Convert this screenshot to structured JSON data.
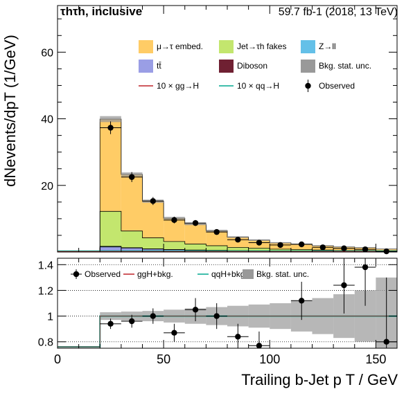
{
  "header": {
    "channel": "τhτh, inclusive",
    "lumi": "59.7 fb-1 (2018, 13 TeV)"
  },
  "axes": {
    "ylabel_main": "dNevents/dpT (1/GeV)",
    "xlabel": "Trailing b-Jet p T / GeV"
  },
  "legend_main": [
    {
      "label": "μ→τ embed.",
      "kind": "box",
      "color": "#ffcc66"
    },
    {
      "label": "Jet→τh fakes",
      "kind": "box",
      "color": "#c3e66e"
    },
    {
      "label": "Z→ll",
      "kind": "box",
      "color": "#64c0e8"
    },
    {
      "label": "tt̄",
      "kind": "box",
      "color": "#9a9ee5"
    },
    {
      "label": "Diboson",
      "kind": "box",
      "color": "#6f2032"
    },
    {
      "label": "Bkg. stat. unc.",
      "kind": "box",
      "color": "#999999"
    },
    {
      "label": "10 × gg→H",
      "kind": "line",
      "color": "#bf2229"
    },
    {
      "label": "10 × qq→H",
      "kind": "line",
      "color": "#00a88f"
    },
    {
      "label": "Observed",
      "kind": "marker",
      "color": "#000000"
    }
  ],
  "legend_ratio": [
    {
      "label": "Observed",
      "kind": "marker",
      "color": "#000000"
    },
    {
      "label": "ggH+bkg.",
      "kind": "line",
      "color": "#bf2229"
    },
    {
      "label": "qqH+bkg.",
      "kind": "line",
      "color": "#00a88f"
    },
    {
      "label": "Bkg. stat. unc.",
      "kind": "box",
      "color": "#999999"
    }
  ],
  "chart_data": {
    "type": "bar",
    "stacked": true,
    "x_edges": [
      0,
      10,
      20,
      30,
      40,
      50,
      60,
      70,
      80,
      90,
      100,
      110,
      120,
      130,
      140,
      150,
      160
    ],
    "xlim": [
      0,
      160
    ],
    "ylim": [
      0,
      74
    ],
    "y_ticks": [
      20,
      40,
      60
    ],
    "x_ticks": [
      0,
      50,
      100,
      150
    ],
    "series": [
      {
        "name": "Diboson",
        "color": "#6f2032",
        "values": [
          0,
          0,
          0.3,
          0.2,
          0.1,
          0.1,
          0.05,
          0.05,
          0.05,
          0.05,
          0.03,
          0.03,
          0.02,
          0.02,
          0.02,
          0.02
        ]
      },
      {
        "name": "tt̄",
        "color": "#9a9ee5",
        "values": [
          0,
          0,
          1.2,
          1.0,
          0.8,
          0.6,
          0.5,
          0.4,
          0.3,
          0.3,
          0.2,
          0.2,
          0.15,
          0.1,
          0.1,
          0.1
        ]
      },
      {
        "name": "Z→ll",
        "color": "#64c0e8",
        "values": [
          0,
          0,
          0.2,
          0.1,
          0.05,
          0.05,
          0.05,
          0.03,
          0.03,
          0.02,
          0.02,
          0.02,
          0.01,
          0.01,
          0.01,
          0.01
        ]
      },
      {
        "name": "Jet→τh fakes",
        "color": "#c3e66e",
        "values": [
          0.3,
          0.3,
          10.5,
          5.0,
          3.3,
          2.4,
          1.8,
          1.4,
          1.0,
          0.8,
          0.6,
          0.5,
          0.4,
          0.3,
          0.3,
          0.2
        ]
      },
      {
        "name": "μ→τ embed.",
        "color": "#ffcc66",
        "values": [
          0,
          0,
          27.7,
          17.0,
          11.0,
          7.0,
          6.0,
          4.5,
          3.1,
          2.4,
          1.9,
          1.6,
          1.3,
          1.1,
          0.9,
          0.6
        ]
      }
    ],
    "stat_unc": [
      0,
      0,
      0.9,
      0.6,
      0.5,
      0.4,
      0.35,
      0.3,
      0.25,
      0.22,
      0.2,
      0.18,
      0.16,
      0.15,
      0.14,
      0.13
    ],
    "observed": {
      "x": [
        25,
        35,
        45,
        55,
        65,
        75,
        85,
        95,
        105,
        115,
        125,
        135,
        145,
        155
      ],
      "y": [
        37.3,
        22.5,
        15.3,
        9.6,
        8.7,
        6.0,
        3.7,
        2.8,
        2.1,
        2.3,
        1.4,
        1.1,
        0.8,
        0.2
      ],
      "err": [
        1.9,
        1.5,
        1.2,
        1.0,
        0.9,
        0.8,
        0.6,
        0.5,
        0.45,
        0.5,
        0.35,
        0.3,
        0.28,
        0.15
      ]
    },
    "ratio": {
      "ylim": [
        0.75,
        1.45
      ],
      "y_ticks": [
        0.8,
        1,
        1.2,
        1.4
      ],
      "y_tick_labels": [
        "0.8",
        "1",
        "1.2",
        "1.4"
      ],
      "observed": {
        "x": [
          25,
          35,
          45,
          55,
          65,
          75,
          85,
          95,
          115,
          135,
          145,
          155
        ],
        "y": [
          0.94,
          0.96,
          1.0,
          0.87,
          1.05,
          1.0,
          0.84,
          0.77,
          1.12,
          1.24,
          1.38,
          0.8
        ],
        "err": [
          0.04,
          0.05,
          0.06,
          0.07,
          0.09,
          0.1,
          0.1,
          0.11,
          0.15,
          0.22,
          0.3,
          0.5
        ]
      },
      "stat_unc_rel": [
        0,
        0,
        0.03,
        0.035,
        0.04,
        0.05,
        0.06,
        0.07,
        0.08,
        0.09,
        0.1,
        0.12,
        0.14,
        0.17,
        0.2,
        0.3
      ]
    }
  }
}
